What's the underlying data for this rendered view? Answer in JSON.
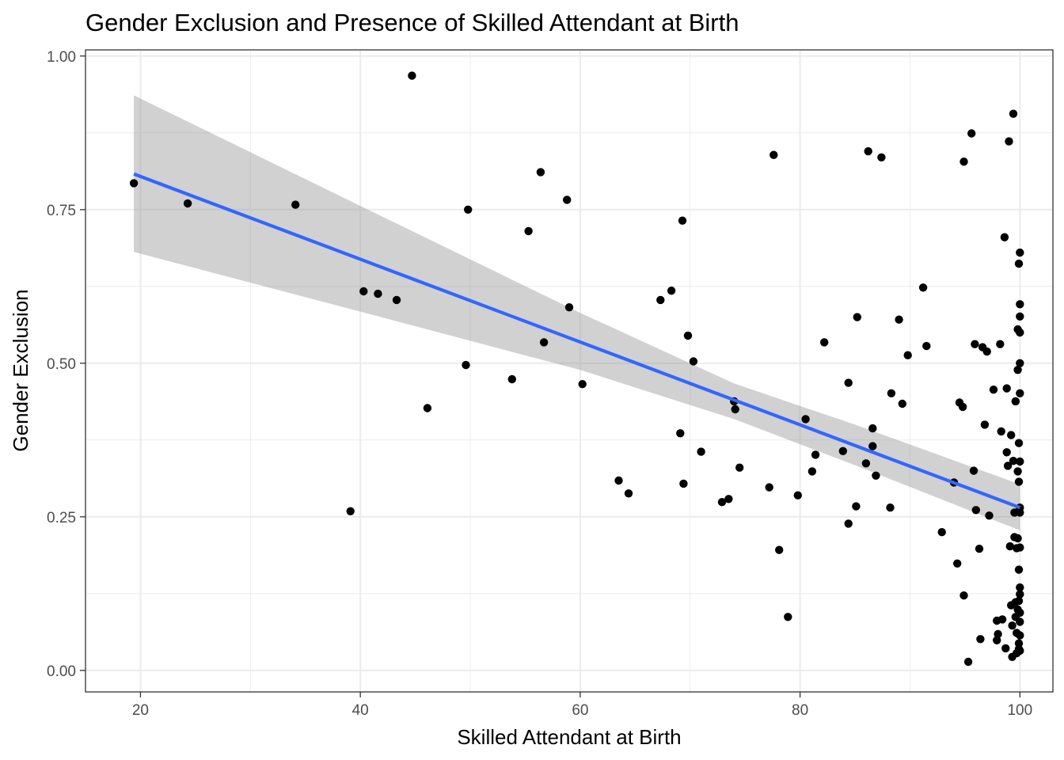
{
  "chart_data": {
    "type": "scatter",
    "title": "Gender Exclusion and Presence of Skilled Attendant at Birth",
    "xlabel": "Skilled Attendant at Birth",
    "ylabel": "Gender Exclusion",
    "xlim": [
      15,
      103
    ],
    "ylim": [
      -0.035,
      1.01
    ],
    "x_ticks": [
      20,
      40,
      60,
      80,
      100
    ],
    "x_tick_labels": [
      "20",
      "40",
      "60",
      "80",
      "100"
    ],
    "y_ticks": [
      0.0,
      0.25,
      0.5,
      0.75,
      1.0
    ],
    "y_tick_labels": [
      "0.00",
      "0.25",
      "0.50",
      "0.75",
      "1.00"
    ],
    "grid": true,
    "legend": "none",
    "colors": {
      "points": "#000000",
      "fit_line": "#3366ff",
      "ribbon": "#999999",
      "grid": "#ebebeb",
      "panel_border": "#333333"
    },
    "fit": {
      "method": "linear",
      "x_start": 19.4,
      "x_end": 100.0,
      "y_start": 0.808,
      "y_end": 0.265,
      "ci_at": [
        {
          "x": 19.4,
          "lower": 0.681,
          "upper": 0.936
        },
        {
          "x": 40.0,
          "lower": 0.584,
          "upper": 0.756
        },
        {
          "x": 60.0,
          "lower": 0.489,
          "upper": 0.582
        },
        {
          "x": 74.0,
          "lower": 0.409,
          "upper": 0.467
        },
        {
          "x": 85.0,
          "lower": 0.334,
          "upper": 0.4
        },
        {
          "x": 100.0,
          "lower": 0.228,
          "upper": 0.303
        }
      ]
    },
    "points": [
      [
        19.4,
        0.793
      ],
      [
        24.3,
        0.76
      ],
      [
        34.1,
        0.758
      ],
      [
        39.1,
        0.259
      ],
      [
        40.3,
        0.617
      ],
      [
        41.6,
        0.613
      ],
      [
        43.3,
        0.603
      ],
      [
        44.7,
        0.968
      ],
      [
        46.1,
        0.427
      ],
      [
        49.6,
        0.497
      ],
      [
        49.8,
        0.75
      ],
      [
        53.8,
        0.474
      ],
      [
        55.3,
        0.715
      ],
      [
        56.4,
        0.811
      ],
      [
        56.7,
        0.534
      ],
      [
        58.8,
        0.766
      ],
      [
        59.0,
        0.591
      ],
      [
        60.2,
        0.466
      ],
      [
        63.5,
        0.309
      ],
      [
        64.4,
        0.288
      ],
      [
        67.3,
        0.603
      ],
      [
        68.3,
        0.618
      ],
      [
        69.1,
        0.386
      ],
      [
        69.3,
        0.732
      ],
      [
        69.4,
        0.304
      ],
      [
        69.8,
        0.545
      ],
      [
        70.3,
        0.503
      ],
      [
        71.0,
        0.356
      ],
      [
        72.9,
        0.274
      ],
      [
        73.5,
        0.279
      ],
      [
        74.0,
        0.438
      ],
      [
        74.1,
        0.425
      ],
      [
        74.5,
        0.33
      ],
      [
        77.2,
        0.298
      ],
      [
        77.6,
        0.839
      ],
      [
        78.1,
        0.196
      ],
      [
        78.9,
        0.087
      ],
      [
        79.8,
        0.285
      ],
      [
        80.5,
        0.409
      ],
      [
        81.1,
        0.324
      ],
      [
        81.4,
        0.351
      ],
      [
        82.2,
        0.534
      ],
      [
        83.9,
        0.357
      ],
      [
        84.4,
        0.468
      ],
      [
        84.4,
        0.239
      ],
      [
        85.1,
        0.267
      ],
      [
        85.2,
        0.575
      ],
      [
        86.0,
        0.337
      ],
      [
        86.2,
        0.845
      ],
      [
        86.6,
        0.394
      ],
      [
        86.6,
        0.365
      ],
      [
        86.9,
        0.317
      ],
      [
        87.4,
        0.835
      ],
      [
        88.2,
        0.265
      ],
      [
        88.3,
        0.451
      ],
      [
        89.0,
        0.571
      ],
      [
        89.3,
        0.434
      ],
      [
        89.8,
        0.513
      ],
      [
        91.2,
        0.623
      ],
      [
        91.5,
        0.528
      ],
      [
        92.9,
        0.225
      ],
      [
        94.0,
        0.306
      ],
      [
        94.3,
        0.174
      ],
      [
        94.5,
        0.436
      ],
      [
        94.8,
        0.429
      ],
      [
        94.9,
        0.122
      ],
      [
        94.9,
        0.828
      ],
      [
        95.3,
        0.014
      ],
      [
        95.6,
        0.874
      ],
      [
        95.8,
        0.325
      ],
      [
        95.9,
        0.531
      ],
      [
        96.0,
        0.261
      ],
      [
        96.3,
        0.198
      ],
      [
        96.4,
        0.051
      ],
      [
        96.6,
        0.526
      ],
      [
        96.8,
        0.4
      ],
      [
        97.0,
        0.519
      ],
      [
        97.2,
        0.252
      ],
      [
        97.6,
        0.457
      ],
      [
        97.9,
        0.081
      ],
      [
        97.9,
        0.049
      ],
      [
        98.0,
        0.059
      ],
      [
        98.2,
        0.531
      ],
      [
        98.3,
        0.389
      ],
      [
        98.4,
        0.083
      ],
      [
        98.6,
        0.705
      ],
      [
        98.7,
        0.036
      ],
      [
        98.8,
        0.459
      ],
      [
        98.8,
        0.355
      ],
      [
        98.9,
        0.333
      ],
      [
        99.0,
        0.861
      ],
      [
        99.1,
        0.202
      ],
      [
        99.2,
        0.106
      ],
      [
        99.2,
        0.383
      ],
      [
        99.3,
        0.073
      ],
      [
        99.3,
        0.022
      ],
      [
        99.4,
        0.906
      ],
      [
        99.4,
        0.341
      ],
      [
        99.5,
        0.257
      ],
      [
        99.5,
        0.217
      ],
      [
        99.6,
        0.438
      ],
      [
        99.6,
        0.111
      ],
      [
        99.6,
        0.087
      ],
      [
        99.7,
        0.199
      ],
      [
        99.7,
        0.061
      ],
      [
        99.7,
        0.028
      ],
      [
        99.8,
        0.555
      ],
      [
        99.8,
        0.489
      ],
      [
        99.8,
        0.324
      ],
      [
        99.8,
        0.215
      ],
      [
        99.8,
        0.099
      ],
      [
        99.9,
        0.662
      ],
      [
        99.9,
        0.37
      ],
      [
        99.9,
        0.307
      ],
      [
        99.9,
        0.164
      ],
      [
        99.9,
        0.113
      ],
      [
        99.9,
        0.044
      ],
      [
        99.9,
        0.035
      ],
      [
        100.0,
        0.68
      ],
      [
        100.0,
        0.596
      ],
      [
        100.0,
        0.576
      ],
      [
        100.0,
        0.55
      ],
      [
        100.0,
        0.5
      ],
      [
        100.0,
        0.451
      ],
      [
        100.0,
        0.34
      ],
      [
        100.0,
        0.265
      ],
      [
        100.0,
        0.257
      ],
      [
        100.0,
        0.2
      ],
      [
        100.0,
        0.135
      ],
      [
        100.0,
        0.124
      ],
      [
        100.0,
        0.094
      ],
      [
        100.0,
        0.079
      ],
      [
        100.0,
        0.057
      ],
      [
        100.0,
        0.032
      ]
    ]
  }
}
